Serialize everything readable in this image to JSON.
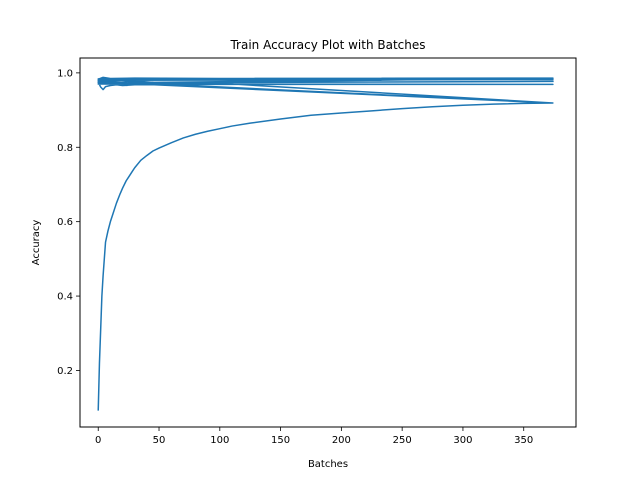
{
  "chart_data": {
    "type": "line",
    "title": "Train Accuracy Plot with Batches",
    "xlabel": "Batches",
    "ylabel": "Accuracy",
    "xlim": [
      -15,
      393
    ],
    "ylim": [
      0.048,
      1.04
    ],
    "xticks": [
      0,
      50,
      100,
      150,
      200,
      250,
      300,
      350
    ],
    "xtick_labels": [
      "0",
      "50",
      "100",
      "150",
      "200",
      "250",
      "300",
      "350"
    ],
    "yticks": [
      0.2,
      0.4,
      0.6,
      0.8,
      1.0
    ],
    "ytick_labels": [
      "0.2",
      "0.4",
      "0.6",
      "0.8",
      "1.0"
    ],
    "grid": false,
    "legend": false,
    "line_color": "#1f77b4",
    "series": [
      {
        "x": [
          0,
          1,
          2,
          3,
          4,
          5,
          6,
          8,
          10,
          12,
          15,
          18,
          20,
          23,
          25,
          28,
          30,
          35,
          40,
          45,
          50,
          60,
          70,
          80,
          90,
          100,
          110,
          125,
          150,
          175,
          200,
          225,
          250,
          275,
          300,
          325,
          350,
          374,
          0,
          2,
          4,
          6,
          10,
          15,
          20,
          30,
          50,
          100,
          150,
          200,
          250,
          300,
          350,
          374,
          0,
          2,
          5,
          8,
          12,
          20,
          30,
          50,
          100,
          374,
          0,
          2,
          4,
          10,
          20,
          40,
          100,
          200,
          374,
          0,
          3,
          6,
          10,
          20,
          40,
          100,
          374,
          0,
          4,
          10,
          30,
          100,
          374,
          0,
          50,
          100,
          200,
          374,
          0,
          374
        ],
        "values": [
          0.094,
          0.22,
          0.31,
          0.4,
          0.455,
          0.5,
          0.545,
          0.575,
          0.6,
          0.62,
          0.65,
          0.675,
          0.69,
          0.71,
          0.72,
          0.735,
          0.745,
          0.765,
          0.778,
          0.79,
          0.798,
          0.812,
          0.825,
          0.835,
          0.843,
          0.85,
          0.857,
          0.865,
          0.876,
          0.886,
          0.892,
          0.898,
          0.904,
          0.909,
          0.913,
          0.916,
          0.918,
          0.919,
          0.975,
          0.962,
          0.955,
          0.963,
          0.966,
          0.968,
          0.966,
          0.968,
          0.969,
          0.969,
          0.969,
          0.969,
          0.969,
          0.969,
          0.969,
          0.969,
          0.97,
          0.978,
          0.975,
          0.976,
          0.972,
          0.975,
          0.978,
          0.973,
          0.972,
          0.919,
          0.978,
          0.982,
          0.984,
          0.982,
          0.983,
          0.982,
          0.982,
          0.982,
          0.982,
          0.98,
          0.986,
          0.984,
          0.985,
          0.984,
          0.984,
          0.984,
          0.984,
          0.983,
          0.988,
          0.985,
          0.986,
          0.985,
          0.986,
          0.984,
          0.985,
          0.985,
          0.985,
          0.985,
          0.973,
          0.977
        ]
      }
    ]
  }
}
